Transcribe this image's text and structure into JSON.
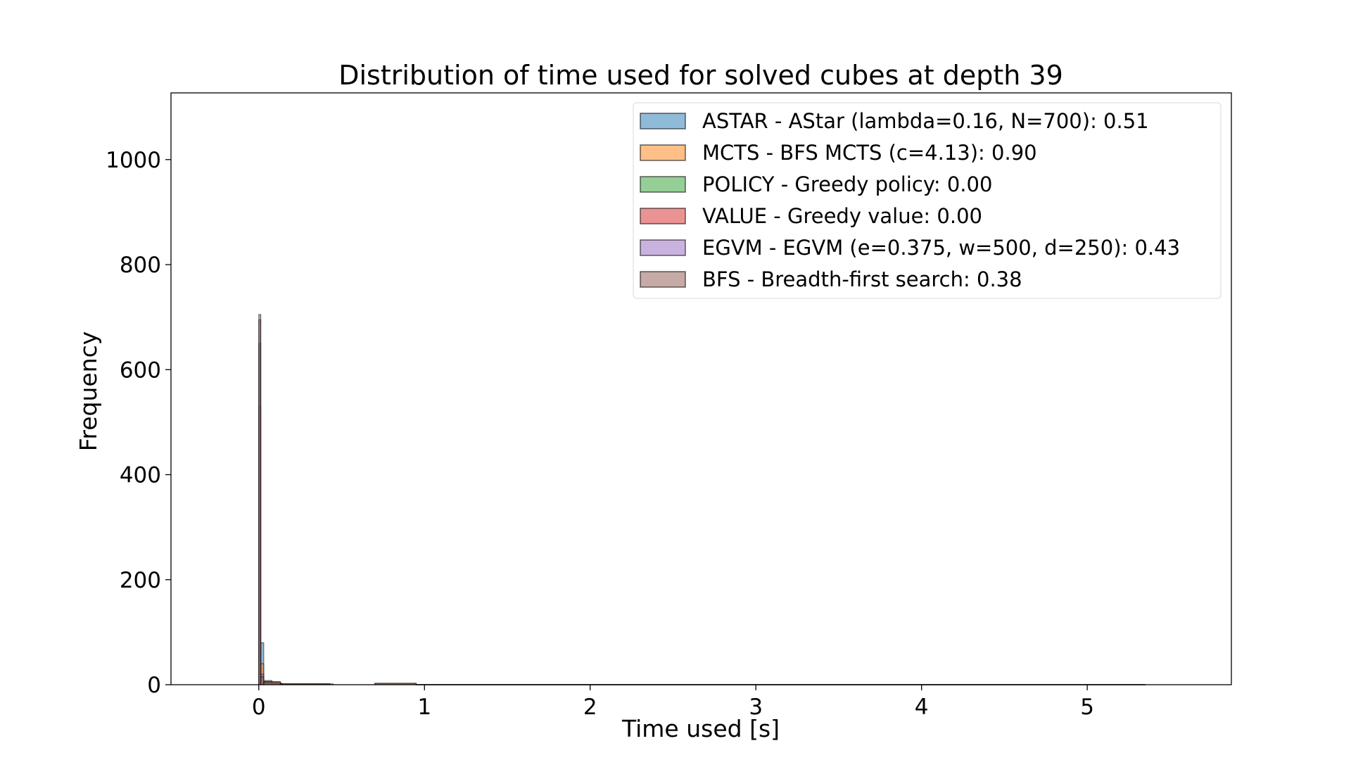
{
  "chart_data": {
    "type": "histogram",
    "title": "Distribution of time used for solved cubes at depth 39",
    "xlabel": "Time used [s]",
    "ylabel": "Frequency",
    "xlim": [
      -0.53,
      5.87
    ],
    "ylim": [
      0,
      1127
    ],
    "xticks": [
      0,
      1,
      2,
      3,
      4,
      5
    ],
    "yticks": [
      0,
      200,
      400,
      600,
      800,
      1000
    ],
    "xtick_labels": [
      "0",
      "1",
      "2",
      "3",
      "4",
      "5"
    ],
    "ytick_labels": [
      "0",
      "200",
      "400",
      "600",
      "800",
      "1000"
    ],
    "grid": false,
    "legend_position": "top-right",
    "series": [
      {
        "name": "ASTAR - AStar (lambda=0.16, N=700): 0.51",
        "color": "#1f77b4",
        "bins": [
          {
            "x0": 0.0,
            "x1": 0.012,
            "count": 650
          },
          {
            "x0": 0.012,
            "x1": 0.03,
            "count": 80
          },
          {
            "x0": 0.03,
            "x1": 0.08,
            "count": 8
          },
          {
            "x0": 0.08,
            "x1": 0.14,
            "count": 3
          },
          {
            "x0": 0.14,
            "x1": 0.4,
            "count": 1
          }
        ]
      },
      {
        "name": "MCTS - BFS MCTS (c=4.13): 0.90",
        "color": "#ff7f0e",
        "bins": [
          {
            "x0": 0.0,
            "x1": 0.012,
            "count": 530
          },
          {
            "x0": 0.012,
            "x1": 0.03,
            "count": 40
          },
          {
            "x0": 0.03,
            "x1": 0.13,
            "count": 6
          },
          {
            "x0": 0.13,
            "x1": 0.43,
            "count": 2
          },
          {
            "x0": 0.7,
            "x1": 0.95,
            "count": 2
          },
          {
            "x0": 0.95,
            "x1": 5.35,
            "count": 0.5
          }
        ]
      },
      {
        "name": "POLICY - Greedy policy: 0.00",
        "color": "#2ca02c",
        "bins": []
      },
      {
        "name": "VALUE - Greedy value: 0.00",
        "color": "#d62728",
        "bins": []
      },
      {
        "name": "EGVM - EGVM (e=0.375, w=500, d=250): 0.43",
        "color": "#9467bd",
        "bins": [
          {
            "x0": 0.0,
            "x1": 0.012,
            "count": 695
          },
          {
            "x0": 0.012,
            "x1": 0.03,
            "count": 20
          },
          {
            "x0": 0.03,
            "x1": 0.12,
            "count": 3
          }
        ]
      },
      {
        "name": "BFS - Breadth-first search: 0.38",
        "color": "#8c564b",
        "bins": [
          {
            "x0": 0.0,
            "x1": 0.012,
            "count": 705
          },
          {
            "x0": 0.012,
            "x1": 0.03,
            "count": 15
          },
          {
            "x0": 0.03,
            "x1": 0.13,
            "count": 5
          },
          {
            "x0": 0.13,
            "x1": 0.45,
            "count": 1.5
          },
          {
            "x0": 0.7,
            "x1": 0.95,
            "count": 3
          },
          {
            "x0": 0.95,
            "x1": 5.35,
            "count": 0.5
          }
        ]
      }
    ]
  }
}
